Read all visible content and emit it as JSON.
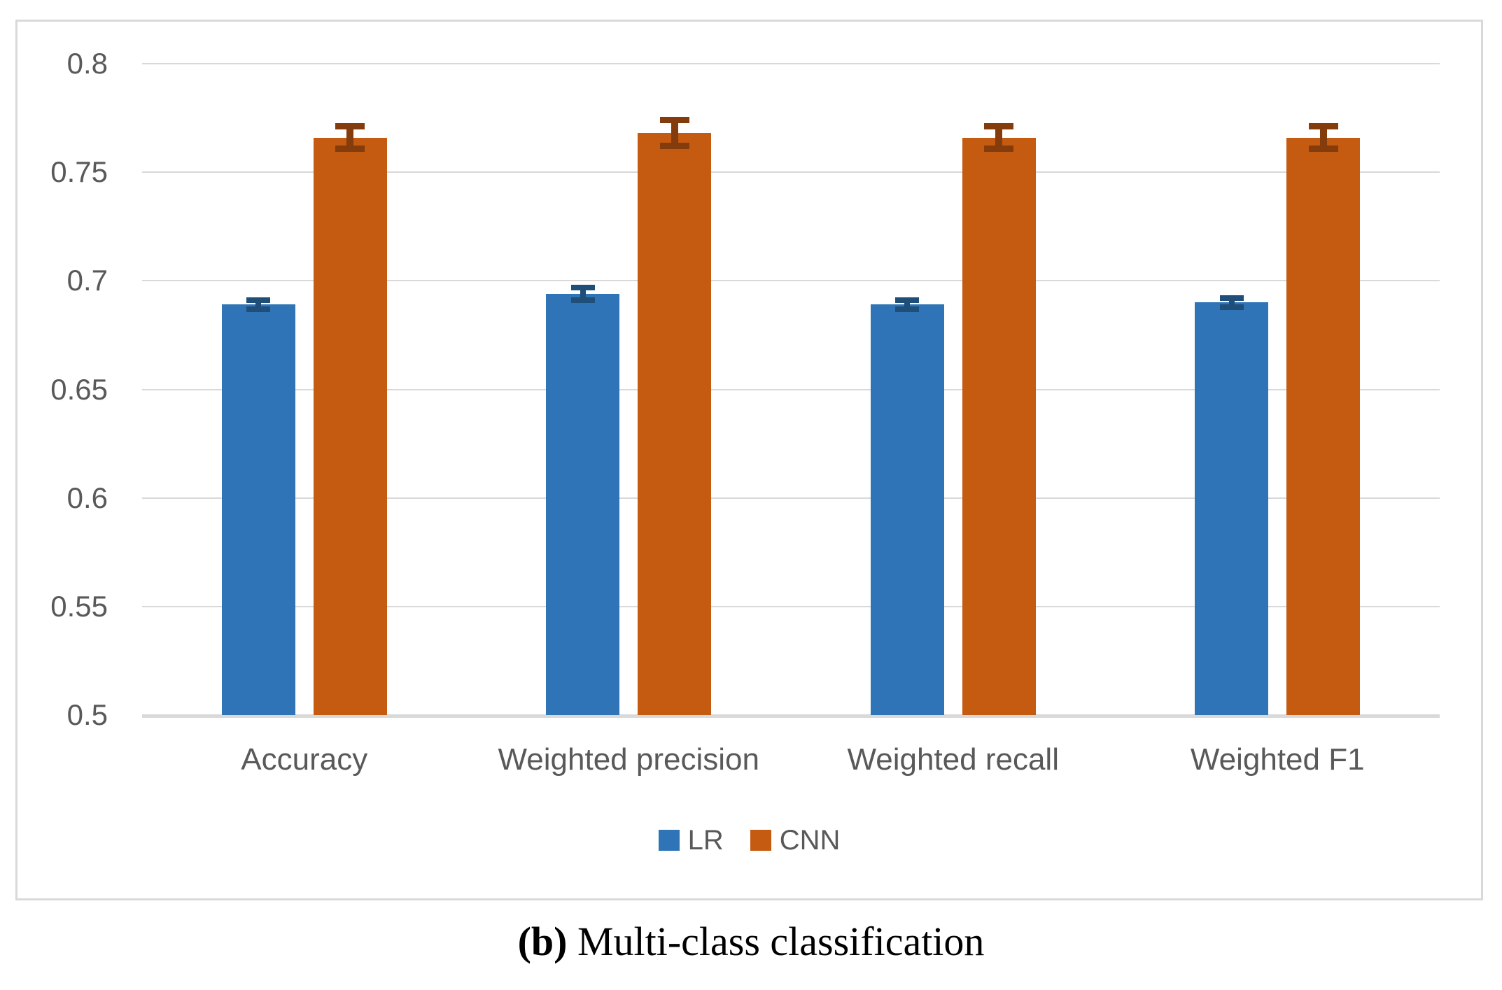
{
  "figure": {
    "caption_label": "(b)",
    "caption_text": "Multi-class classification"
  },
  "legend": {
    "items": [
      {
        "label": "LR",
        "color": "#2E74B6"
      },
      {
        "label": "CNN",
        "color": "#C55A11"
      }
    ]
  },
  "chart_data": {
    "type": "bar",
    "title": "",
    "xlabel": "",
    "ylabel": "",
    "categories": [
      "Accuracy",
      "Weighted precision",
      "Weighted recall",
      "Weighted F1"
    ],
    "series": [
      {
        "name": "LR",
        "color": "#2E74B6",
        "error_color": "#1F4E79",
        "values": [
          0.689,
          0.694,
          0.689,
          0.69
        ],
        "errors": [
          0.002,
          0.003,
          0.002,
          0.002
        ]
      },
      {
        "name": "CNN",
        "color": "#C55A11",
        "error_color": "#843C0C",
        "values": [
          0.766,
          0.768,
          0.766,
          0.766
        ],
        "errors": [
          0.005,
          0.006,
          0.005,
          0.005
        ]
      }
    ],
    "ylim": [
      0.5,
      0.8
    ],
    "yticks": [
      0.8,
      0.75,
      0.7,
      0.65,
      0.6,
      0.55,
      0.5
    ],
    "ytick_labels": [
      "0.8",
      "0.75",
      "0.7",
      "0.65",
      "0.6",
      "0.55",
      "0.5"
    ],
    "grid": true,
    "legend_position": "bottom",
    "colors": {
      "gridline": "#D9D9D9",
      "axis_line": "#D9D9D9",
      "tick_text": "#595959",
      "border": "#D9D9D9"
    }
  }
}
